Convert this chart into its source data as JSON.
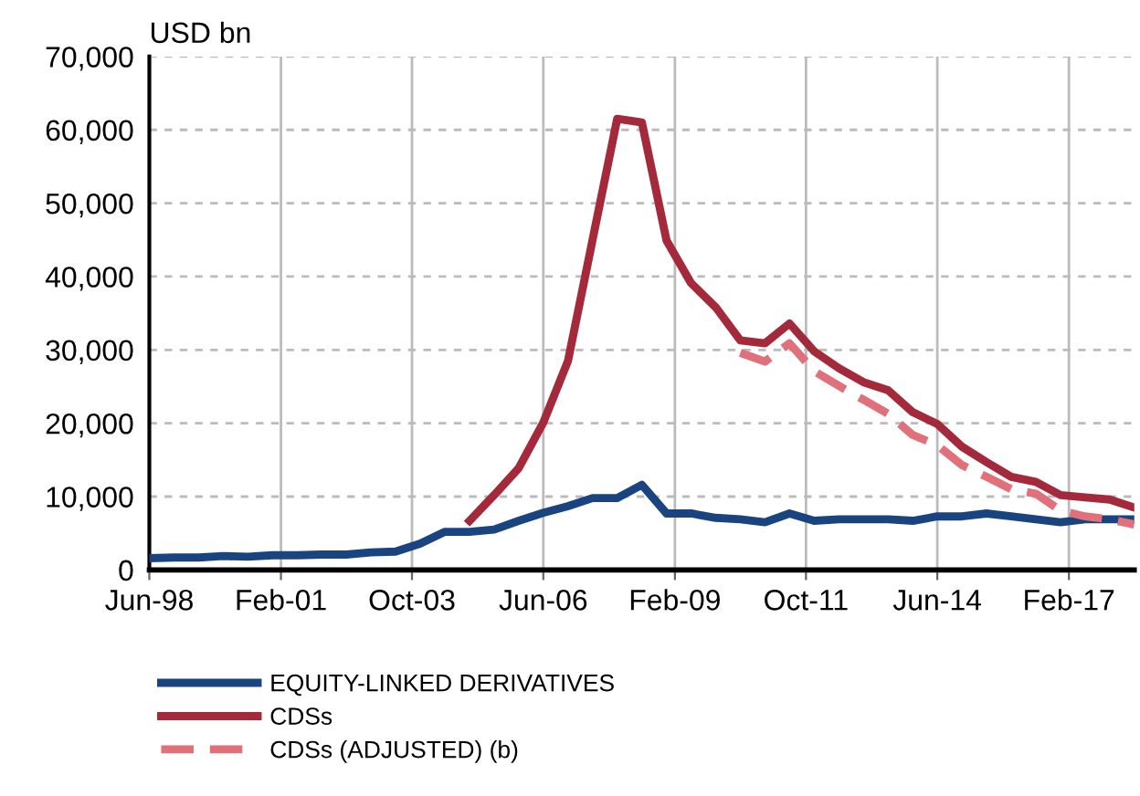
{
  "chart_data": {
    "type": "line",
    "ylabel": "USD bn",
    "x": [
      "1998-06",
      "1998-12",
      "1999-06",
      "1999-12",
      "2000-06",
      "2000-12",
      "2001-06",
      "2001-12",
      "2002-06",
      "2002-12",
      "2003-06",
      "2003-12",
      "2004-06",
      "2004-12",
      "2005-06",
      "2005-12",
      "2006-06",
      "2006-12",
      "2007-06",
      "2007-12",
      "2008-06",
      "2008-12",
      "2009-06",
      "2009-12",
      "2010-06",
      "2010-12",
      "2011-06",
      "2011-12",
      "2012-06",
      "2012-12",
      "2013-06",
      "2013-12",
      "2014-06",
      "2014-12",
      "2015-06",
      "2015-12",
      "2016-06",
      "2016-12",
      "2017-06",
      "2017-12",
      "2018-06"
    ],
    "series": [
      {
        "name": "EQUITY-LINKED DERIVATIVES",
        "color": "#1a4480",
        "line_style": "solid",
        "values": [
          1600,
          1700,
          1700,
          1900,
          1800,
          2000,
          2000,
          2100,
          2100,
          2400,
          2500,
          3600,
          5200,
          5200,
          5500,
          6700,
          7800,
          8700,
          9800,
          9800,
          11600,
          7700,
          7700,
          7100,
          6900,
          6500,
          7700,
          6700,
          6900,
          6900,
          6900,
          6700,
          7300,
          7300,
          7700,
          7300,
          6900,
          6500,
          6900,
          6900,
          6900
        ]
      },
      {
        "name": "CDSs",
        "color": "#a3293b",
        "line_style": "solid",
        "values": [
          null,
          null,
          null,
          null,
          null,
          null,
          null,
          null,
          null,
          null,
          null,
          null,
          null,
          6700,
          10200,
          13900,
          20100,
          28500,
          45000,
          61500,
          61000,
          44900,
          39100,
          35800,
          31300,
          30900,
          33600,
          29800,
          27500,
          25600,
          24500,
          21500,
          19900,
          16800,
          14700,
          12700,
          12000,
          10200,
          9900,
          9600,
          8500
        ]
      },
      {
        "name": "CDSs (ADJUSTED) (b)",
        "color": "#e0707a",
        "line_style": "dashed",
        "values": [
          null,
          null,
          null,
          null,
          null,
          null,
          null,
          null,
          null,
          null,
          null,
          null,
          null,
          null,
          null,
          null,
          null,
          null,
          null,
          null,
          null,
          null,
          null,
          null,
          29600,
          28400,
          30900,
          27100,
          25100,
          23200,
          21300,
          18400,
          17000,
          14300,
          12700,
          11000,
          10400,
          8100,
          7300,
          6900,
          6200
        ]
      }
    ],
    "xlim": [
      "1998-06",
      "2018-06"
    ],
    "xticks": [
      {
        "value": "1998-06",
        "label": "Jun-98"
      },
      {
        "value": "2001-02",
        "label": "Feb-01"
      },
      {
        "value": "2003-10",
        "label": "Oct-03"
      },
      {
        "value": "2006-06",
        "label": "Jun-06"
      },
      {
        "value": "2009-02",
        "label": "Feb-09"
      },
      {
        "value": "2011-10",
        "label": "Oct-11"
      },
      {
        "value": "2014-06",
        "label": "Jun-14"
      },
      {
        "value": "2017-02",
        "label": "Feb-17"
      }
    ],
    "ylim": [
      0,
      70000
    ],
    "yticks": [
      {
        "value": 0,
        "label": "0"
      },
      {
        "value": 10000,
        "label": "10,000"
      },
      {
        "value": 20000,
        "label": "20,000"
      },
      {
        "value": 30000,
        "label": "30,000"
      },
      {
        "value": 40000,
        "label": "40,000"
      },
      {
        "value": 50000,
        "label": "50,000"
      },
      {
        "value": 60000,
        "label": "60,000"
      },
      {
        "value": 70000,
        "label": "70,000"
      }
    ],
    "grid": true,
    "legend": "bottom"
  }
}
